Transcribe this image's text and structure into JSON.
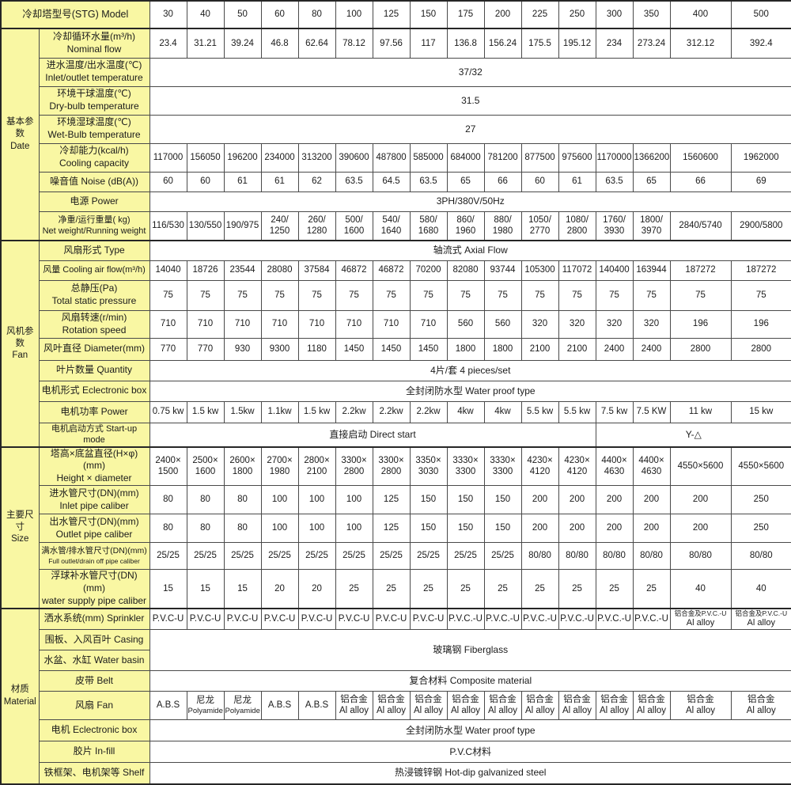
{
  "colors": {
    "label_background": "#f9f7a3",
    "cell_background": "#ffffff",
    "border": "#4a4a4a",
    "text": "#1b1b1b"
  },
  "header": {
    "label": "冷却塔型号(STG) Model",
    "models": [
      "30",
      "40",
      "50",
      "60",
      "80",
      "100",
      "125",
      "150",
      "175",
      "200",
      "225",
      "250",
      "300",
      "350",
      "400",
      "500"
    ]
  },
  "groups": {
    "basic": "基本参数\nDate",
    "fan": "风机参数\nFan",
    "size": "主要尺寸\nSize",
    "material": "材质\nMaterial"
  },
  "rows": {
    "nominal_flow": {
      "label": "冷却循环水量(m³/h)\nNominal flow",
      "values": [
        "23.4",
        "31.21",
        "39.24",
        "46.8",
        "62.64",
        "78.12",
        "97.56",
        "117",
        "136.8",
        "156.24",
        "175.5",
        "195.12",
        "234",
        "273.24",
        "312.12",
        "392.4"
      ]
    },
    "inlet_outlet_temp": {
      "label": "进水温度/出水温度(℃)\nInlet/outlet temperature",
      "value": "37/32"
    },
    "dry_bulb": {
      "label": "环境干球温度(℃)\nDry-bulb temperature",
      "value": "31.5"
    },
    "wet_bulb": {
      "label": "环境湿球温度(℃)\nWet-Bulb temperature",
      "value": "27"
    },
    "cooling_capacity": {
      "label": "冷却能力(kcal/h)\nCooling capacity",
      "values": [
        "117000",
        "156050",
        "196200",
        "234000",
        "313200",
        "390600",
        "487800",
        "585000",
        "684000",
        "781200",
        "877500",
        "975600",
        "1170000",
        "1366200",
        "1560600",
        "1962000"
      ]
    },
    "noise": {
      "label": "噪音值 Noise (dB(A))",
      "values": [
        "60",
        "60",
        "61",
        "61",
        "62",
        "63.5",
        "64.5",
        "63.5",
        "65",
        "66",
        "60",
        "61",
        "63.5",
        "65",
        "66",
        "69"
      ]
    },
    "power_supply": {
      "label": "电源 Power",
      "value": "3PH/380V/50Hz"
    },
    "net_weight": {
      "label": "净重/运行重量( kg)\nNet weight/Running weight",
      "values": [
        "116/530",
        "130/550",
        "190/975",
        "240/\n1250",
        "260/\n1280",
        "500/\n1600",
        "540/\n1640",
        "580/\n1680",
        "860/\n1960",
        "880/\n1980",
        "1050/\n2770",
        "1080/\n2800",
        "1760/\n3930",
        "1800/\n3970",
        "2840/5740",
        "2900/5800"
      ]
    },
    "fan_type": {
      "label": "风扇形式 Type",
      "value": "轴流式 Axial Flow"
    },
    "air_flow": {
      "label": "风量 Cooling air flow(m³/h)",
      "values": [
        "14040",
        "18726",
        "23544",
        "28080",
        "37584",
        "46872",
        "46872",
        "70200",
        "82080",
        "93744",
        "105300",
        "117072",
        "140400",
        "163944",
        "187272",
        "187272"
      ]
    },
    "static_pressure": {
      "label": "总静压(Pa)\nTotal static pressure",
      "values": [
        "75",
        "75",
        "75",
        "75",
        "75",
        "75",
        "75",
        "75",
        "75",
        "75",
        "75",
        "75",
        "75",
        "75",
        "75",
        "75"
      ]
    },
    "rotation_speed": {
      "label": "风扇转速(r/min)\nRotation speed",
      "values": [
        "710",
        "710",
        "710",
        "710",
        "710",
        "710",
        "710",
        "710",
        "560",
        "560",
        "320",
        "320",
        "320",
        "320",
        "196",
        "196"
      ]
    },
    "diameter": {
      "label": "风叶直径 Diameter(mm)",
      "values": [
        "770",
        "770",
        "930",
        "9300",
        "1180",
        "1450",
        "1450",
        "1450",
        "1800",
        "1800",
        "2100",
        "2100",
        "2400",
        "2400",
        "2800",
        "2800"
      ]
    },
    "quantity": {
      "label": "叶片数量 Quantity",
      "value": "4片/套 4 pieces/set"
    },
    "motor_type": {
      "label": "电机形式 Eclectronic box",
      "value": "全封闭防水型 Water proof type"
    },
    "motor_power": {
      "label": "电机功率 Power",
      "values": [
        "0.75 kw",
        "1.5 kw",
        "1.5kw",
        "1.1kw",
        "1.5 kw",
        "2.2kw",
        "2.2kw",
        "2.2kw",
        "4kw",
        "4kw",
        "5.5 kw",
        "5.5 kw",
        "7.5 kw",
        "7.5 KW",
        "11 kw",
        "15 kw"
      ]
    },
    "startup": {
      "label": "电机启动方式 Start-up mode",
      "value_left": "直接启动 Direct start",
      "value_right": "Y-△"
    },
    "height_diameter": {
      "label": "塔高×底盆直径(H×φ)(mm)\nHeight × diameter",
      "values": [
        "2400×\n1500",
        "2500×\n1600",
        "2600×\n1800",
        "2700×\n1980",
        "2800×\n2100",
        "3300×\n2800",
        "3300×\n2800",
        "3350×\n3030",
        "3330×\n3300",
        "3330×\n3300",
        "4230×\n4120",
        "4230×\n4120",
        "4400×\n4630",
        "4400×\n4630",
        "4550×5600",
        "4550×5600"
      ]
    },
    "inlet_pipe": {
      "label": "进水管尺寸(DN)(mm)\nInlet pipe caliber",
      "values": [
        "80",
        "80",
        "80",
        "100",
        "100",
        "100",
        "125",
        "150",
        "150",
        "150",
        "200",
        "200",
        "200",
        "200",
        "200",
        "250"
      ]
    },
    "outlet_pipe": {
      "label": "出水管尺寸(DN)(mm)\nOutlet pipe caliber",
      "values": [
        "80",
        "80",
        "80",
        "100",
        "100",
        "100",
        "125",
        "150",
        "150",
        "150",
        "200",
        "200",
        "200",
        "200",
        "200",
        "250"
      ]
    },
    "drain_pipe": {
      "label_zh": "满水管/排水管尺寸(DN)(mm)",
      "label_en": "Full outlet/drain off pipe caliber",
      "values": [
        "25/25",
        "25/25",
        "25/25",
        "25/25",
        "25/25",
        "25/25",
        "25/25",
        "25/25",
        "25/25",
        "25/25",
        "80/80",
        "80/80",
        "80/80",
        "80/80",
        "80/80",
        "80/80"
      ]
    },
    "supply_pipe": {
      "label": "浮球补水管尺寸(DN)(mm)\nwater supply pipe caliber",
      "values": [
        "15",
        "15",
        "15",
        "20",
        "20",
        "25",
        "25",
        "25",
        "25",
        "25",
        "25",
        "25",
        "25",
        "25",
        "40",
        "40"
      ]
    },
    "sprinkler": {
      "label": "洒水系统(mm) Sprinkler",
      "values": [
        "P.V.C-U",
        "P.V.C-U",
        "P.V.C-U",
        "P.V.C-U",
        "P.V.C-U",
        "P.V.C-U",
        "P.V.C-U",
        "P.V.C-U",
        "P.V.C.-U",
        "P.V.C.-U",
        "P.V.C.-U",
        "P.V.C.-U",
        "P.V.C.-U",
        "P.V.C.-U"
      ],
      "alloy_zh": "铝合金及P.V.C.-U",
      "alloy_en": "Al alloy"
    },
    "casing": {
      "label": "围板、入风百叶 Casing",
      "value": "玻璃钢 Fiberglass"
    },
    "water_basin": {
      "label": "水盆、水缸 Water basin"
    },
    "belt": {
      "label": "皮带 Belt",
      "value": "复合材料 Composite material"
    },
    "fan_material": {
      "label": "风扇 Fan",
      "abs": "A.B.S",
      "nylon_zh": "尼龙",
      "nylon_en": "Polyamide",
      "alloy_zh": "铝合金",
      "alloy_en": "Al alloy"
    },
    "motor_material": {
      "label": "电机 Eclectronic box",
      "value": "全封闭防水型 Water proof type"
    },
    "infill": {
      "label": "胶片 In-fill",
      "value": "P.V.C材料"
    },
    "shelf": {
      "label": "铁框架、电机架等 Shelf",
      "value": "热浸镀锌钢 Hot-dip galvanized steel"
    }
  }
}
